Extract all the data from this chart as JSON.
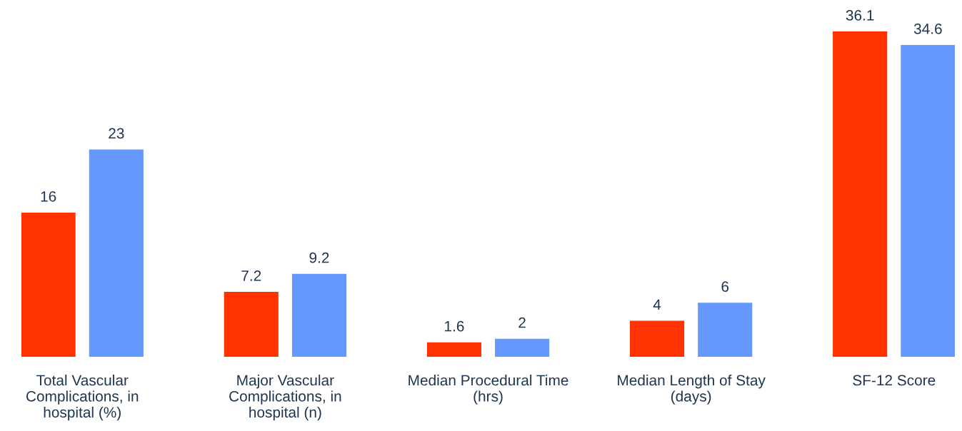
{
  "chart_data": {
    "type": "bar",
    "categories": [
      "Total Vascular\nComplications, in\nhospital (%)",
      "Major Vascular\nComplications, in\nhospital (n)",
      "Median Procedural Time\n(hrs)",
      "Median Length of Stay\n(days)",
      "SF-12 Score"
    ],
    "series": [
      {
        "color": "#ff3300",
        "values": [
          16,
          7.2,
          1.6,
          4,
          36.1
        ]
      },
      {
        "color": "#6699ff",
        "values": [
          23,
          9.2,
          2,
          6,
          34.6
        ]
      }
    ],
    "data_labels": true,
    "grid": false,
    "legend": false
  }
}
